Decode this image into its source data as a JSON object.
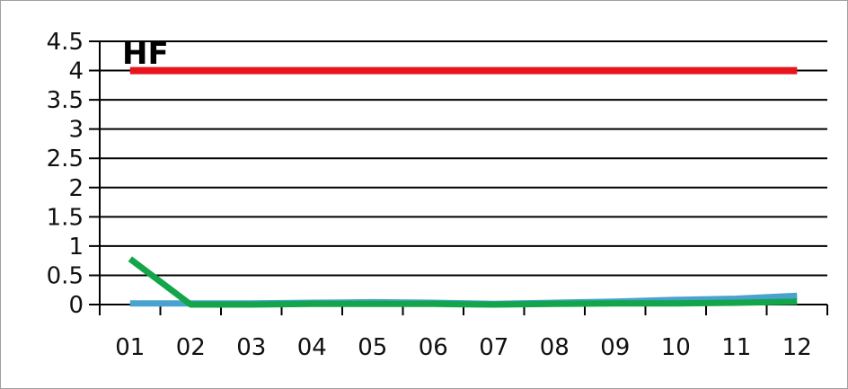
{
  "chart_data": {
    "type": "line",
    "title": "HF",
    "xlabel": "",
    "ylabel": "",
    "categories": [
      "01",
      "02",
      "03",
      "04",
      "05",
      "06",
      "07",
      "08",
      "09",
      "10",
      "11",
      "12"
    ],
    "y_ticks": [
      "0",
      "0.5",
      "1",
      "1.5",
      "2",
      "2.5",
      "3",
      "3.5",
      "4",
      "4.5"
    ],
    "ylim": [
      0,
      4.5
    ],
    "grid": true,
    "series": [
      {
        "color": "#e8141c",
        "values": [
          4,
          4,
          4,
          4,
          4,
          4,
          4,
          4,
          4,
          4,
          4,
          4
        ]
      },
      {
        "color": "#4aa3cf",
        "values": [
          0.02,
          0.02,
          0.02,
          0.03,
          0.04,
          0.03,
          0.01,
          0.03,
          0.05,
          0.08,
          0.1,
          0.15
        ]
      },
      {
        "color": "#13a54a",
        "values": [
          0.78,
          0.0,
          0.0,
          0.01,
          0.01,
          0.01,
          0.0,
          0.01,
          0.02,
          0.02,
          0.03,
          0.05
        ]
      }
    ]
  }
}
